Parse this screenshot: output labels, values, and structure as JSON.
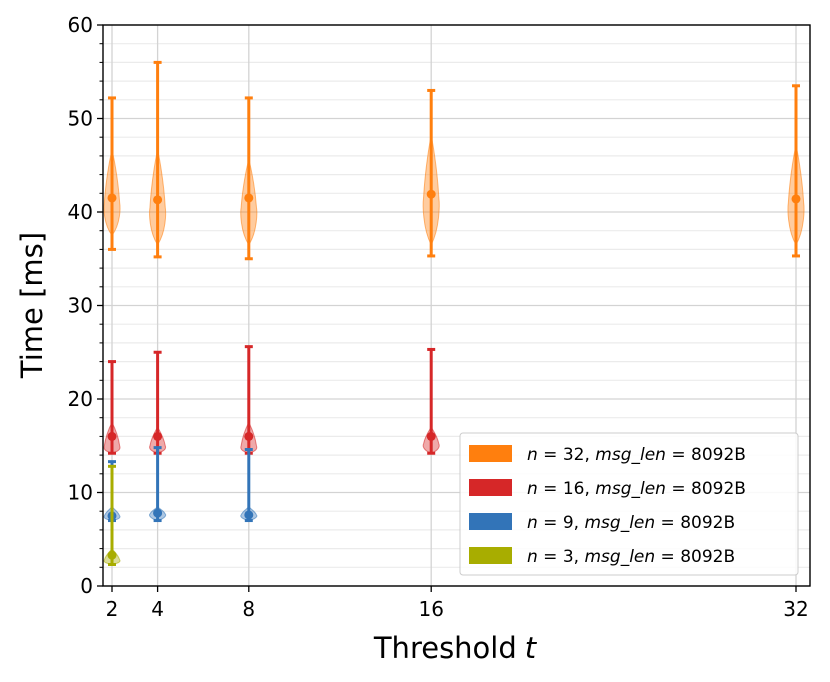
{
  "chart_data": {
    "type": "violin",
    "title": "",
    "xlabel_text": "Threshold",
    "xlabel_var": "t",
    "ylabel": "Time [ms]",
    "xlim": [
      1.5,
      32.5
    ],
    "ylim": [
      0,
      60
    ],
    "x_ticks": [
      2,
      4,
      8,
      16,
      32
    ],
    "y_major_ticks": [
      0,
      10,
      20,
      30,
      40,
      50,
      60
    ],
    "y_minor_step": 2,
    "grid": true,
    "legend_position": "lower-right",
    "series": [
      {
        "name": "n = 32, msg_len = 8092B",
        "legend_math": "n = 32, msg_len = 8092B",
        "color": "#ff7f0e",
        "points": [
          {
            "x": 2,
            "min": 36.0,
            "max": 52.2,
            "median": 41.5,
            "body_low": 37.5,
            "body_high": 46.5,
            "peak": 41.0
          },
          {
            "x": 4,
            "min": 35.2,
            "max": 56.0,
            "median": 41.3,
            "body_low": 36.5,
            "body_high": 46.5,
            "peak": 40.5
          },
          {
            "x": 8,
            "min": 35.0,
            "max": 52.2,
            "median": 41.5,
            "body_low": 36.5,
            "body_high": 45.5,
            "peak": 40.5
          },
          {
            "x": 16,
            "min": 35.3,
            "max": 53.0,
            "median": 41.9,
            "body_low": 36.5,
            "body_high": 48.0,
            "peak": 41.5
          },
          {
            "x": 32,
            "min": 35.3,
            "max": 53.5,
            "median": 41.4,
            "body_low": 36.5,
            "body_high": 47.0,
            "peak": 41.0
          }
        ]
      },
      {
        "name": "n = 16, msg_len = 8092B",
        "color": "#d62728",
        "points": [
          {
            "x": 2,
            "min": 14.2,
            "max": 24.0,
            "median": 16.0,
            "body_low": 14.2,
            "body_high": 17.5,
            "peak": 15.0
          },
          {
            "x": 4,
            "min": 14.2,
            "max": 25.0,
            "median": 16.0,
            "body_low": 14.2,
            "body_high": 17.0,
            "peak": 15.0
          },
          {
            "x": 8,
            "min": 14.2,
            "max": 25.6,
            "median": 16.0,
            "body_low": 14.2,
            "body_high": 17.5,
            "peak": 15.0
          },
          {
            "x": 16,
            "min": 14.2,
            "max": 25.3,
            "median": 16.0,
            "body_low": 14.2,
            "body_high": 17.0,
            "peak": 15.2
          }
        ]
      },
      {
        "name": "n = 9, msg_len = 8092B",
        "color": "#3274b8",
        "points": [
          {
            "x": 2,
            "min": 7.0,
            "max": 13.3,
            "median": 7.5,
            "body_low": 7.0,
            "body_high": 8.5,
            "peak": 7.5
          },
          {
            "x": 4,
            "min": 7.0,
            "max": 14.8,
            "median": 7.8,
            "body_low": 7.0,
            "body_high": 8.5,
            "peak": 7.7
          },
          {
            "x": 8,
            "min": 7.0,
            "max": 14.6,
            "median": 7.6,
            "body_low": 7.0,
            "body_high": 8.5,
            "peak": 7.6
          }
        ]
      },
      {
        "name": "n = 3, msg_len = 8092B",
        "color": "#a8ad00",
        "points": [
          {
            "x": 2,
            "min": 2.3,
            "max": 12.8,
            "median": 3.3,
            "body_low": 2.3,
            "body_high": 4.0,
            "peak": 2.8
          }
        ]
      }
    ],
    "legend": [
      {
        "n": "32",
        "msg": "msg_len",
        "eq": "=",
        "len": "8092B",
        "color": "#ff7f0e"
      },
      {
        "n": "16",
        "msg": "msg_len",
        "eq": "=",
        "len": "8092B",
        "color": "#d62728"
      },
      {
        "n": "9",
        "msg": "msg_len",
        "eq": "=",
        "len": "8092B",
        "color": "#3274b8"
      },
      {
        "n": "3",
        "msg": "msg_len",
        "eq": "=",
        "len": "8092B",
        "color": "#a8ad00"
      }
    ]
  }
}
